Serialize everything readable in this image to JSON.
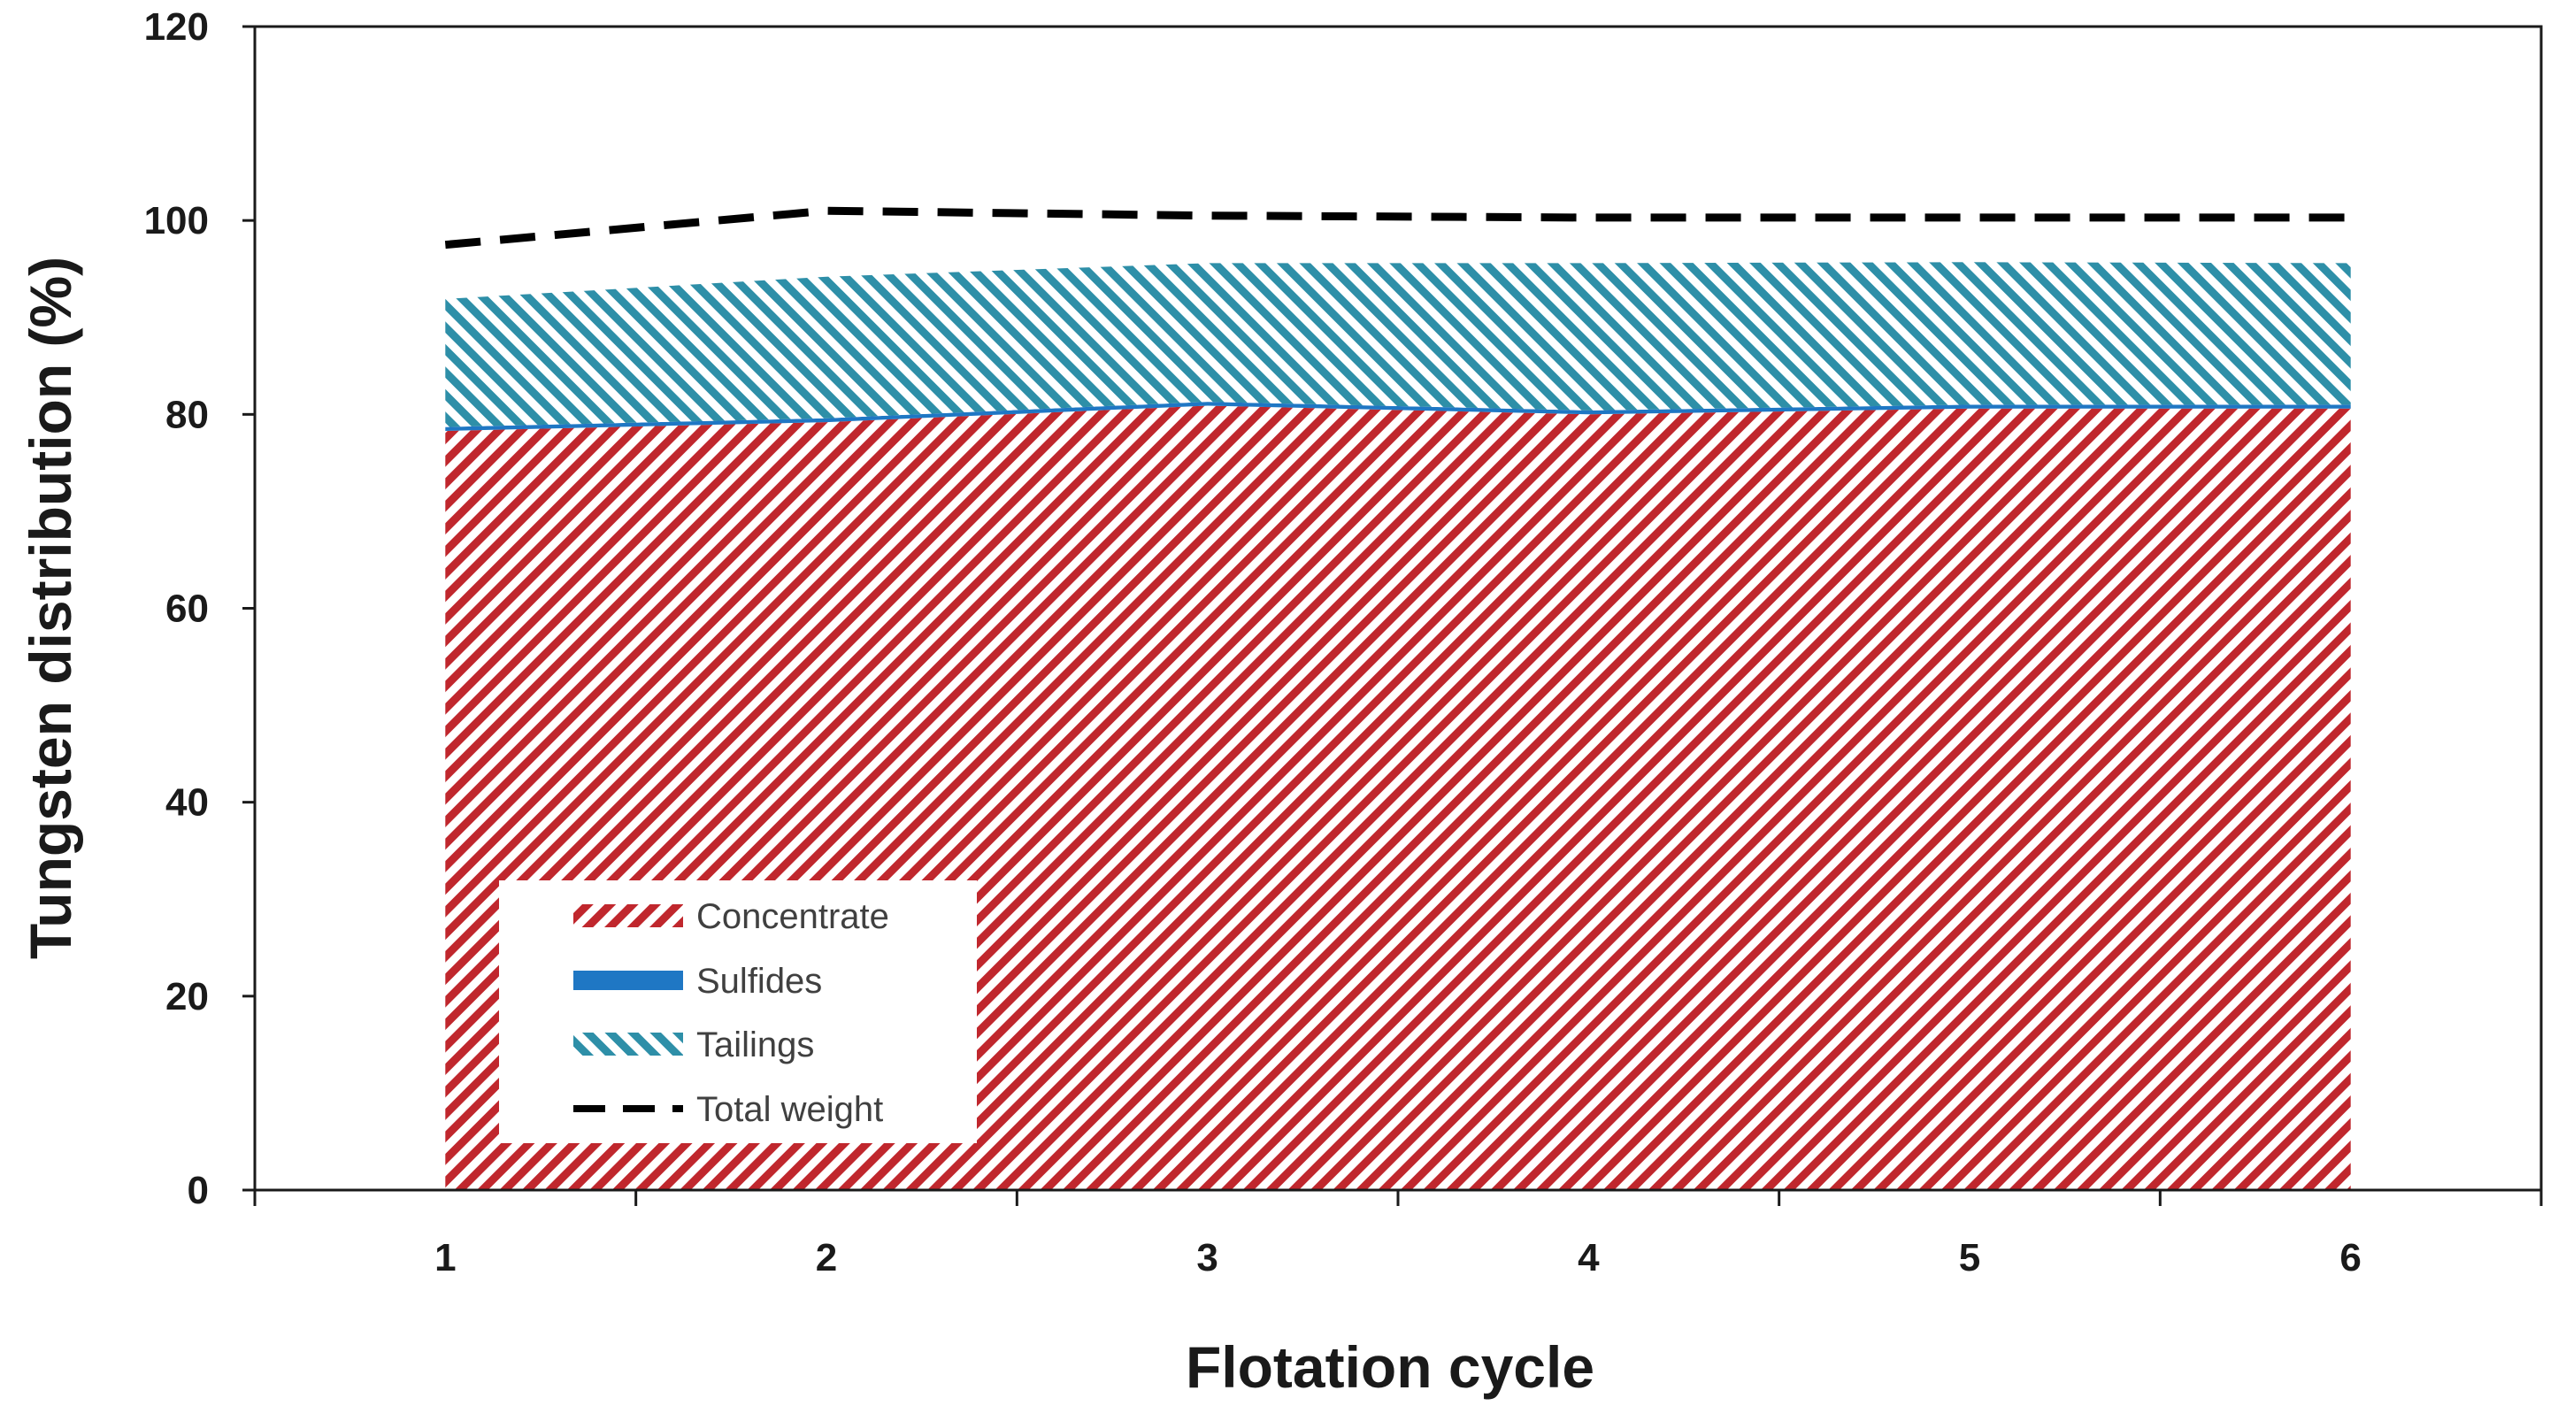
{
  "chart_data": {
    "type": "area",
    "title": "",
    "xlabel": "Flotation cycle",
    "ylabel": "Tungsten distribution (%)",
    "x": [
      1,
      2,
      3,
      4,
      5,
      6
    ],
    "xticks": [
      "1",
      "2",
      "3",
      "4",
      "5",
      "6"
    ],
    "xlim": [
      0.5,
      6.5
    ],
    "ylim": [
      0,
      120
    ],
    "yticks": [
      0,
      20,
      40,
      60,
      80,
      100,
      120
    ],
    "grid": false,
    "stacked": true,
    "legend_position": "bottom-left",
    "series": [
      {
        "name": "Concentrate",
        "kind": "area",
        "pattern": "hatch",
        "color": "#c0272d",
        "values": [
          78.3,
          79.2,
          80.9,
          80.0,
          80.6,
          80.6
        ]
      },
      {
        "name": "Sulfides",
        "kind": "area",
        "pattern": "solid",
        "color": "#1f77c4",
        "values": [
          0.4,
          0.4,
          0.4,
          0.4,
          0.4,
          0.4
        ]
      },
      {
        "name": "Tailings",
        "kind": "area",
        "pattern": "hatch",
        "color": "#2e8fa8",
        "values": [
          13.2,
          14.6,
          14.3,
          15.2,
          14.7,
          14.6
        ]
      },
      {
        "name": "Total weight",
        "kind": "line",
        "dash": "dashed",
        "color": "#000000",
        "values": [
          97.5,
          101.0,
          100.5,
          100.3,
          100.3,
          100.3
        ]
      }
    ]
  }
}
